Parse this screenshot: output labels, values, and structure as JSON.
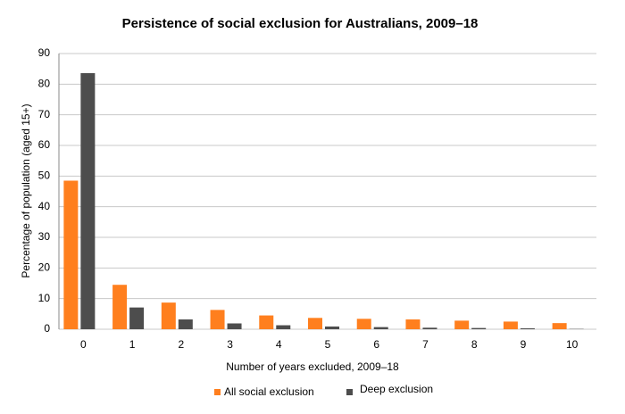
{
  "chart_data": {
    "type": "bar",
    "title": "Persistence of social exclusion for Australians, 2009–18",
    "x_label": "Number of years excluded, 2009–18",
    "y_label": "Percentage of population (aged 15+)",
    "categories": [
      "0",
      "1",
      "2",
      "3",
      "4",
      "5",
      "6",
      "7",
      "8",
      "9",
      "10"
    ],
    "series": [
      {
        "name": "All social exclusion",
        "color": "#ff7f1e",
        "values": [
          48.5,
          14.5,
          8.7,
          6.3,
          4.5,
          3.7,
          3.4,
          3.2,
          2.8,
          2.5,
          2.0
        ]
      },
      {
        "name": "Deep exclusion",
        "color": "#4d4d4d",
        "values": [
          83.6,
          7.1,
          3.2,
          1.9,
          1.3,
          0.9,
          0.7,
          0.5,
          0.4,
          0.3,
          0.1
        ]
      }
    ],
    "ylim": [
      0,
      90
    ],
    "yticks": [
      0,
      10,
      20,
      30,
      40,
      50,
      60,
      70,
      80,
      90
    ],
    "grid": true,
    "legend": "bottom"
  }
}
